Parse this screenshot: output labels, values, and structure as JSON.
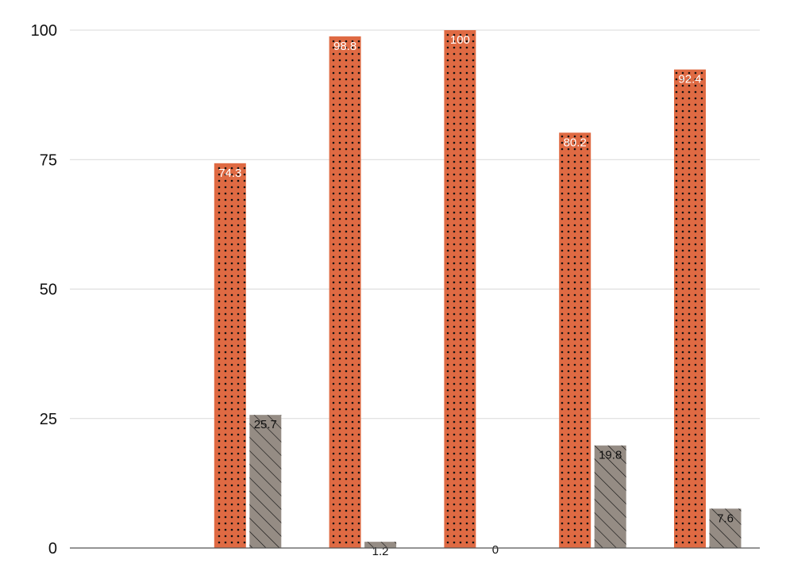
{
  "chart_data": {
    "type": "bar",
    "title": "",
    "xlabel": "",
    "ylabel": "",
    "ylim": [
      0,
      100
    ],
    "yticks": [
      0,
      25,
      50,
      75,
      100
    ],
    "grid": true,
    "categories": [
      "",
      "",
      "",
      "",
      "",
      ""
    ],
    "series": [
      {
        "values": [
          null,
          74.3,
          98.8,
          100,
          80.2,
          92.4
        ],
        "labels": [
          "",
          "74.3",
          "98.8",
          "100",
          "80.2",
          "92.4"
        ],
        "color": "#df6a43",
        "pattern": "dots",
        "label_color": "#ffffff"
      },
      {
        "values": [
          null,
          25.7,
          1.2,
          0,
          19.8,
          7.6
        ],
        "labels": [
          "",
          "25.7",
          "1.2",
          "0",
          "19.8",
          "7.6"
        ],
        "color": "#958c84",
        "pattern": "diagonal-hatch",
        "label_color": "#111111"
      }
    ]
  }
}
